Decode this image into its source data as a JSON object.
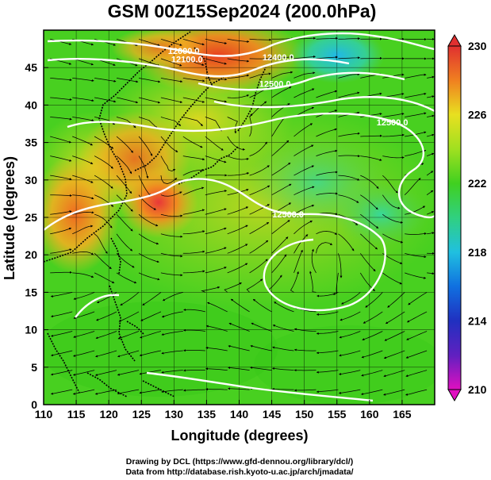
{
  "title": "GSM 00Z15Sep2024 (200.0hPa)",
  "map": {
    "x_axis": {
      "label": "Longitude (degrees)",
      "range": [
        110,
        170
      ],
      "ticks": [
        "110",
        "115",
        "120",
        "125",
        "130",
        "135",
        "140",
        "145",
        "150",
        "155",
        "160",
        "165"
      ]
    },
    "y_axis": {
      "label": "Latitude  (degrees)",
      "range": [
        0,
        50
      ],
      "ticks": [
        "0",
        "5",
        "10",
        "15",
        "20",
        "25",
        "30",
        "35",
        "40",
        "45"
      ]
    },
    "contour_labels": [
      {
        "text": "12000.0",
        "lon": 131.5,
        "lat": 46.8
      },
      {
        "text": "12100.0",
        "lon": 132.0,
        "lat": 45.7
      },
      {
        "text": "12400.0",
        "lon": 146.0,
        "lat": 46.0
      },
      {
        "text": "12500.0",
        "lon": 145.5,
        "lat": 42.4
      },
      {
        "text": "12500.0",
        "lon": 163.5,
        "lat": 37.3
      },
      {
        "text": "12500.0",
        "lon": 147.5,
        "lat": 25.0
      }
    ],
    "fields": "temperature shading with streamlines and geopotential height contours"
  },
  "colorbar": {
    "ticks": [
      "230",
      "226",
      "222",
      "218",
      "214",
      "210"
    ],
    "min": 210,
    "max": 230,
    "colors": [
      "#e010c0",
      "#2020c0",
      "#1060e0",
      "#20c0e0",
      "#30d080",
      "#40d020",
      "#90e020",
      "#e0e020",
      "#f0b020",
      "#f07020",
      "#e03030"
    ]
  },
  "credits": {
    "line1": "Drawing by DCL (https://www.gfd-dennou.org/library/dcl/)",
    "line2": "Data from http://database.rish.kyoto-u.ac.jp/arch/jmadata/"
  }
}
